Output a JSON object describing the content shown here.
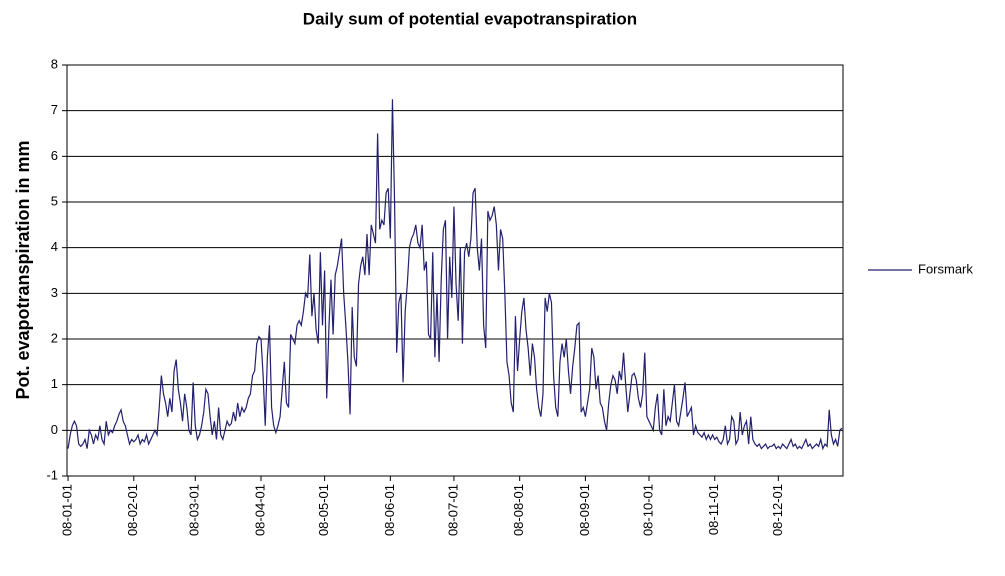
{
  "chart_data": {
    "type": "line",
    "title": "Daily sum of potential evapotranspiration",
    "y_label": "Pot. evapotranspiration in mm",
    "categories": [
      "08-01-01",
      null,
      null,
      null,
      null,
      null,
      null,
      null,
      null,
      null,
      null,
      null,
      null,
      null,
      null,
      null,
      null,
      null,
      null,
      null,
      null,
      null,
      null,
      null,
      null,
      null,
      null,
      null,
      null,
      null,
      null,
      "08-02-01",
      null,
      null,
      null,
      null,
      null,
      null,
      null,
      null,
      null,
      null,
      null,
      null,
      null,
      null,
      null,
      null,
      null,
      null,
      null,
      null,
      null,
      null,
      null,
      null,
      null,
      null,
      null,
      null,
      "08-03-01",
      null,
      null,
      null,
      null,
      null,
      null,
      null,
      null,
      null,
      null,
      null,
      null,
      null,
      null,
      null,
      null,
      null,
      null,
      null,
      null,
      null,
      null,
      null,
      null,
      null,
      null,
      null,
      null,
      null,
      null,
      "08-04-01",
      null,
      null,
      null,
      null,
      null,
      null,
      null,
      null,
      null,
      null,
      null,
      null,
      null,
      null,
      null,
      null,
      null,
      null,
      null,
      null,
      null,
      null,
      null,
      null,
      null,
      null,
      null,
      null,
      null,
      "08-05-01",
      null,
      null,
      null,
      null,
      null,
      null,
      null,
      null,
      null,
      null,
      null,
      null,
      null,
      null,
      null,
      null,
      null,
      null,
      null,
      null,
      null,
      null,
      null,
      null,
      null,
      null,
      null,
      null,
      null,
      null,
      "08-06-01",
      null,
      null,
      null,
      null,
      null,
      null,
      null,
      null,
      null,
      null,
      null,
      null,
      null,
      null,
      null,
      null,
      null,
      null,
      null,
      null,
      null,
      null,
      null,
      null,
      null,
      null,
      null,
      null,
      null,
      "08-07-01",
      null,
      null,
      null,
      null,
      null,
      null,
      null,
      null,
      null,
      null,
      null,
      null,
      null,
      null,
      null,
      null,
      null,
      null,
      null,
      null,
      null,
      null,
      null,
      null,
      null,
      null,
      null,
      null,
      null,
      null,
      "08-08-01",
      null,
      null,
      null,
      null,
      null,
      null,
      null,
      null,
      null,
      null,
      null,
      null,
      null,
      null,
      null,
      null,
      null,
      null,
      null,
      null,
      null,
      null,
      null,
      null,
      null,
      null,
      null,
      null,
      null,
      null,
      "08-09-01",
      null,
      null,
      null,
      null,
      null,
      null,
      null,
      null,
      null,
      null,
      null,
      null,
      null,
      null,
      null,
      null,
      null,
      null,
      null,
      null,
      null,
      null,
      null,
      null,
      null,
      null,
      null,
      null,
      null,
      "08-10-01",
      null,
      null,
      null,
      null,
      null,
      null,
      null,
      null,
      null,
      null,
      null,
      null,
      null,
      null,
      null,
      null,
      null,
      null,
      null,
      null,
      null,
      null,
      null,
      null,
      null,
      null,
      null,
      null,
      null,
      null,
      "08-11-01",
      null,
      null,
      null,
      null,
      null,
      null,
      null,
      null,
      null,
      null,
      null,
      null,
      null,
      null,
      null,
      null,
      null,
      null,
      null,
      null,
      null,
      null,
      null,
      null,
      null,
      null,
      null,
      null,
      null,
      "08-12-01",
      null,
      null,
      null,
      null,
      null,
      null,
      null,
      null,
      null,
      null,
      null,
      null,
      null,
      null,
      null,
      null,
      null,
      null,
      null,
      null,
      null,
      null,
      null,
      null,
      null,
      null,
      null,
      null,
      null,
      null
    ],
    "series": [
      {
        "name": "Forsmark",
        "color": "#23206e",
        "values": [
          -0.4,
          -0.1,
          0.1,
          0.2,
          0.1,
          -0.3,
          -0.35,
          -0.3,
          -0.2,
          -0.4,
          0,
          -0.1,
          -0.3,
          -0.1,
          -0.2,
          0.1,
          -0.2,
          -0.3,
          0.2,
          -0.1,
          0,
          -0.05,
          0.1,
          0.2,
          0.35,
          0.45,
          0.2,
          0.1,
          -0.1,
          -0.3,
          -0.2,
          -0.25,
          -0.2,
          -0.1,
          -0.3,
          -0.2,
          -0.25,
          -0.1,
          -0.3,
          -0.2,
          -0.1,
          0,
          -0.1,
          0.5,
          1.2,
          0.8,
          0.6,
          0.3,
          0.7,
          0.4,
          1.3,
          1.55,
          0.9,
          0.6,
          0.2,
          0.8,
          0.5,
          0,
          -0.1,
          1.05,
          0.1,
          -0.2,
          -0.1,
          0.1,
          0.4,
          0.9,
          0.8,
          0.3,
          -0.1,
          0.2,
          -0.2,
          0.5,
          -0.1,
          -0.2,
          0,
          0.2,
          0.1,
          0.15,
          0.4,
          0.2,
          0.6,
          0.3,
          0.5,
          0.4,
          0.5,
          0.7,
          0.8,
          1.2,
          1.3,
          1.9,
          2.05,
          2.0,
          1.2,
          0.1,
          1.6,
          2.3,
          0.5,
          0.1,
          -0.05,
          0.1,
          0.3,
          0.9,
          1.5,
          0.6,
          0.5,
          2.1,
          2.0,
          1.9,
          2.3,
          2.4,
          2.3,
          2.6,
          3.0,
          2.9,
          3.85,
          2.5,
          3.0,
          2.2,
          1.9,
          3.9,
          2.3,
          3.5,
          0.7,
          2.2,
          3.3,
          2.1,
          3.4,
          3.6,
          3.9,
          4.2,
          3.0,
          2.3,
          1.5,
          0.35,
          2.7,
          1.6,
          1.4,
          3.2,
          3.6,
          3.8,
          3.4,
          4.3,
          3.4,
          4.5,
          4.3,
          4.1,
          6.5,
          4.4,
          4.6,
          4.5,
          5.2,
          5.3,
          4.2,
          7.25,
          5.0,
          1.7,
          2.8,
          3.0,
          1.05,
          2.6,
          3.2,
          4.0,
          4.2,
          4.3,
          4.5,
          4.1,
          4.0,
          4.5,
          3.5,
          3.7,
          2.1,
          2.0,
          3.9,
          1.6,
          3.0,
          1.5,
          3.3,
          4.4,
          4.6,
          2.0,
          3.8,
          2.9,
          4.9,
          3.2,
          2.4,
          4.0,
          1.9,
          3.9,
          4.1,
          3.8,
          4.2,
          5.2,
          5.3,
          4.0,
          3.5,
          4.2,
          2.3,
          1.8,
          4.8,
          4.6,
          4.7,
          4.9,
          4.5,
          3.5,
          4.4,
          4.2,
          3.0,
          1.5,
          1.2,
          0.6,
          0.4,
          2.5,
          1.3,
          2.0,
          2.6,
          2.9,
          2.2,
          1.8,
          1.2,
          1.9,
          1.6,
          0.9,
          0.5,
          0.3,
          0.8,
          2.9,
          2.6,
          3.0,
          2.8,
          1.2,
          0.5,
          0.3,
          1.5,
          1.9,
          1.6,
          2.0,
          1.3,
          0.8,
          1.4,
          1.8,
          2.3,
          2.35,
          0.4,
          0.5,
          0.3,
          0.6,
          0.9,
          1.8,
          1.6,
          0.9,
          1.2,
          0.6,
          0.5,
          0.2,
          0,
          0.6,
          1.0,
          1.2,
          1.1,
          0.8,
          1.3,
          1.1,
          1.7,
          1.0,
          0.4,
          0.8,
          1.2,
          1.25,
          1.1,
          0.7,
          0.5,
          0.8,
          1.7,
          0.3,
          0.2,
          0.1,
          0,
          0.5,
          0.8,
          0,
          -0.1,
          0.9,
          0.1,
          0.3,
          0.2,
          0.6,
          1.0,
          0.2,
          0.1,
          0.4,
          0.7,
          1.05,
          0.3,
          0.4,
          0.5,
          -0.1,
          0.1,
          -0.05,
          -0.1,
          -0.15,
          -0.05,
          -0.2,
          -0.1,
          -0.2,
          -0.1,
          -0.2,
          -0.15,
          -0.25,
          -0.3,
          -0.2,
          0.1,
          -0.3,
          -0.2,
          0.3,
          0.2,
          -0.3,
          -0.2,
          0.4,
          -0.1,
          0.1,
          0.2,
          -0.3,
          0.3,
          -0.2,
          -0.3,
          -0.35,
          -0.3,
          -0.4,
          -0.35,
          -0.3,
          -0.4,
          -0.35,
          -0.35,
          -0.3,
          -0.4,
          -0.35,
          -0.4,
          -0.3,
          -0.35,
          -0.4,
          -0.3,
          -0.2,
          -0.35,
          -0.3,
          -0.4,
          -0.35,
          -0.4,
          -0.3,
          -0.2,
          -0.35,
          -0.3,
          -0.4,
          -0.35,
          -0.3,
          -0.35,
          -0.2,
          -0.4,
          -0.3,
          -0.35,
          0.45,
          -0.1,
          -0.3,
          -0.2,
          -0.35,
          0.0,
          0.05
        ]
      }
    ],
    "ylim": [
      -1,
      8
    ],
    "yticks": [
      -1,
      0,
      1,
      2,
      3,
      4,
      5,
      6,
      7,
      8
    ],
    "grid": true,
    "legend": "right"
  }
}
